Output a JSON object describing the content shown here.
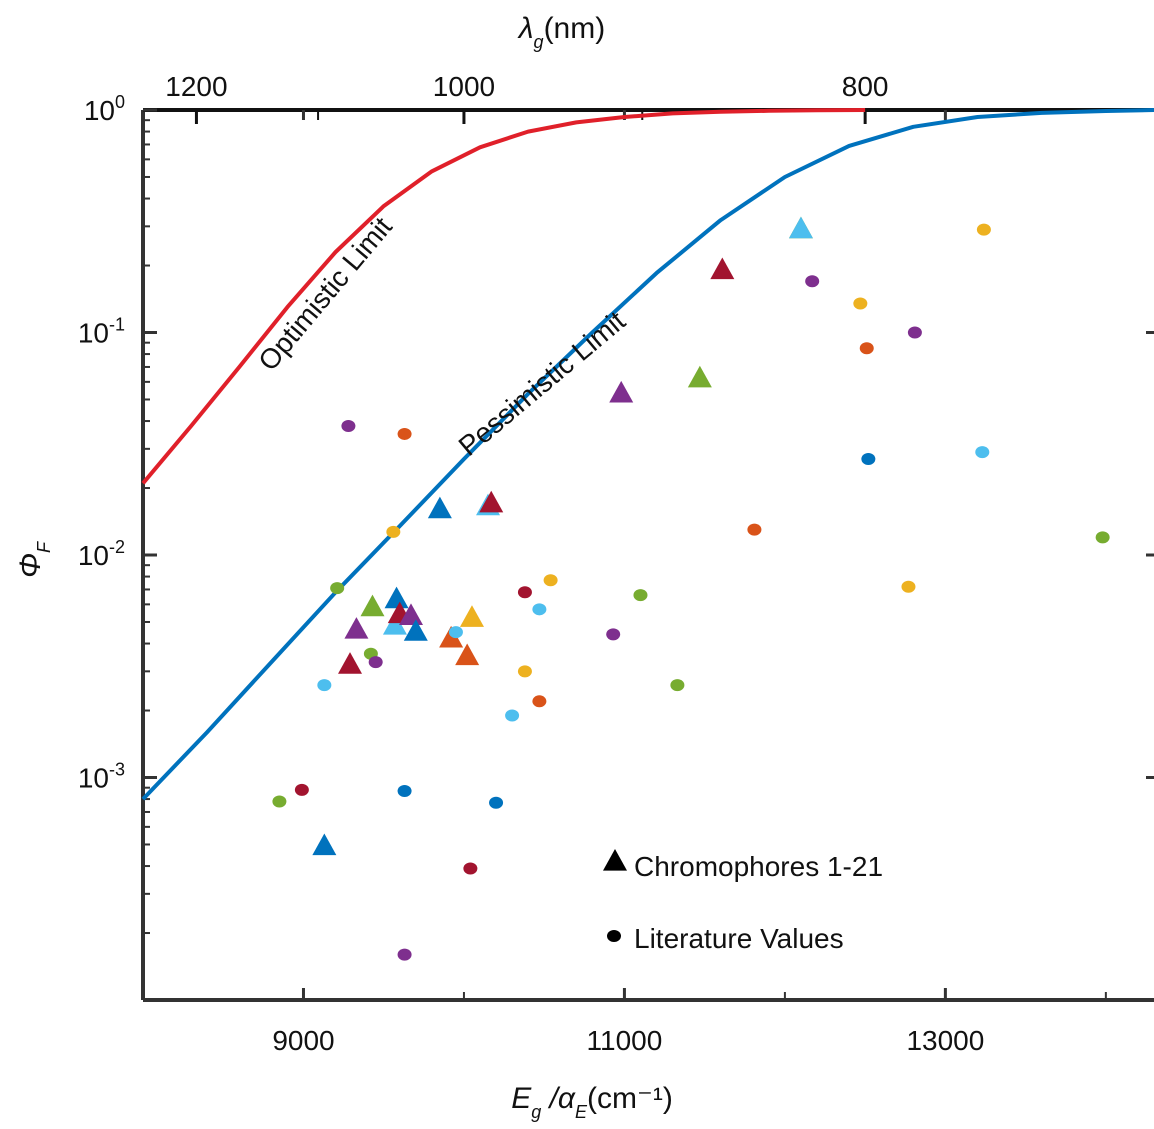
{
  "chart_data": {
    "type": "scatter",
    "title": "",
    "xlabel": {
      "main": "E",
      "sub1": "g",
      "mid": " /α",
      "sub2": "E",
      "tail": "(cm⁻¹)"
    },
    "ylabel": {
      "main": "Φ",
      "sub": "F"
    },
    "x2label": {
      "main": "λ",
      "sub": "g",
      "tail": "(nm)"
    },
    "xlim": [
      8000,
      14300
    ],
    "ylim": [
      0.0001,
      1
    ],
    "y_scale": "log",
    "x_ticks": [
      9000,
      11000,
      13000
    ],
    "x_tick_labels": [
      "9000",
      "11000",
      "13000"
    ],
    "y_ticks": [
      {
        "base": "10",
        "exp": "0",
        "value": 1
      },
      {
        "base": "10",
        "exp": "-1",
        "value": 0.1
      },
      {
        "base": "10",
        "exp": "-2",
        "value": 0.01
      },
      {
        "base": "10",
        "exp": "-3",
        "value": 0.001
      }
    ],
    "x2_ticks": [
      {
        "label": "1200",
        "value": 8333
      },
      {
        "label": "1000",
        "value": 10000
      },
      {
        "label": "800",
        "value": 12500
      }
    ],
    "curves": [
      {
        "name": "Optimistic Limit",
        "color": "#e0202a",
        "x": [
          8000,
          8300,
          8600,
          8900,
          9200,
          9500,
          9800,
          10100,
          10400,
          10700,
          11000,
          11300,
          11600,
          11900,
          12200,
          12500
        ],
        "y": [
          0.021,
          0.038,
          0.07,
          0.13,
          0.23,
          0.37,
          0.53,
          0.68,
          0.8,
          0.88,
          0.93,
          0.965,
          0.982,
          0.992,
          0.997,
          1.0
        ]
      },
      {
        "name": "Pessimistic Limit",
        "color": "#0072bd",
        "x": [
          8000,
          8400,
          8800,
          9200,
          9600,
          10000,
          10400,
          10800,
          11200,
          11600,
          12000,
          12400,
          12800,
          13200,
          13600,
          14000,
          14300
        ],
        "y": [
          0.0008,
          0.0016,
          0.0033,
          0.0068,
          0.0135,
          0.027,
          0.053,
          0.1,
          0.185,
          0.32,
          0.5,
          0.69,
          0.84,
          0.93,
          0.97,
          0.99,
          1.0
        ]
      }
    ],
    "series": [
      {
        "name": "Chromophores 1-21",
        "marker": "triangle",
        "points": [
          {
            "x": 9130,
            "y": 0.00049,
            "color": "#0072bd"
          },
          {
            "x": 9290,
            "y": 0.0032,
            "color": "#a2142f"
          },
          {
            "x": 9330,
            "y": 0.0046,
            "color": "#7e2f8e"
          },
          {
            "x": 9430,
            "y": 0.0058,
            "color": "#77ac30"
          },
          {
            "x": 9570,
            "y": 0.0048,
            "color": "#4dbeee"
          },
          {
            "x": 9580,
            "y": 0.0063,
            "color": "#0072bd"
          },
          {
            "x": 9600,
            "y": 0.0054,
            "color": "#a2142f"
          },
          {
            "x": 9670,
            "y": 0.0053,
            "color": "#7e2f8e"
          },
          {
            "x": 9700,
            "y": 0.0045,
            "color": "#0072bd"
          },
          {
            "x": 9850,
            "y": 0.016,
            "color": "#0072bd"
          },
          {
            "x": 9920,
            "y": 0.0042,
            "color": "#d95319"
          },
          {
            "x": 10020,
            "y": 0.0035,
            "color": "#d95319"
          },
          {
            "x": 10050,
            "y": 0.0052,
            "color": "#edb120"
          },
          {
            "x": 10150,
            "y": 0.0165,
            "color": "#4dbeee"
          },
          {
            "x": 10170,
            "y": 0.017,
            "color": "#a2142f"
          },
          {
            "x": 10980,
            "y": 0.053,
            "color": "#7e2f8e"
          },
          {
            "x": 11470,
            "y": 0.062,
            "color": "#77ac30"
          },
          {
            "x": 11610,
            "y": 0.19,
            "color": "#a2142f"
          },
          {
            "x": 12100,
            "y": 0.29,
            "color": "#77ac30"
          },
          {
            "x": 12100,
            "y": 0.29,
            "color": "#4dbeee"
          }
        ]
      },
      {
        "name": "Literature Values",
        "marker": "dot",
        "points": [
          {
            "x": 8850,
            "y": 0.00078,
            "color": "#77ac30"
          },
          {
            "x": 8990,
            "y": 0.00088,
            "color": "#a2142f"
          },
          {
            "x": 9130,
            "y": 0.0026,
            "color": "#4dbeee"
          },
          {
            "x": 9210,
            "y": 0.0071,
            "color": "#77ac30"
          },
          {
            "x": 9280,
            "y": 0.038,
            "color": "#7e2f8e"
          },
          {
            "x": 9420,
            "y": 0.0036,
            "color": "#77ac30"
          },
          {
            "x": 9450,
            "y": 0.0033,
            "color": "#7e2f8e"
          },
          {
            "x": 9560,
            "y": 0.0127,
            "color": "#edb120"
          },
          {
            "x": 9630,
            "y": 0.035,
            "color": "#d95319"
          },
          {
            "x": 9630,
            "y": 0.00087,
            "color": "#0072bd"
          },
          {
            "x": 9630,
            "y": 0.00016,
            "color": "#7e2f8e"
          },
          {
            "x": 9950,
            "y": 0.0045,
            "color": "#4dbeee"
          },
          {
            "x": 10040,
            "y": 0.00039,
            "color": "#a2142f"
          },
          {
            "x": 10200,
            "y": 0.00077,
            "color": "#0072bd"
          },
          {
            "x": 10300,
            "y": 0.0019,
            "color": "#4dbeee"
          },
          {
            "x": 10380,
            "y": 0.0068,
            "color": "#a2142f"
          },
          {
            "x": 10380,
            "y": 0.003,
            "color": "#edb120"
          },
          {
            "x": 10470,
            "y": 0.0057,
            "color": "#4dbeee"
          },
          {
            "x": 10470,
            "y": 0.0022,
            "color": "#d95319"
          },
          {
            "x": 10540,
            "y": 0.0077,
            "color": "#edb120"
          },
          {
            "x": 10930,
            "y": 0.0044,
            "color": "#7e2f8e"
          },
          {
            "x": 11100,
            "y": 0.0066,
            "color": "#77ac30"
          },
          {
            "x": 11330,
            "y": 0.0026,
            "color": "#77ac30"
          },
          {
            "x": 11810,
            "y": 0.013,
            "color": "#d95319"
          },
          {
            "x": 12170,
            "y": 0.17,
            "color": "#7e2f8e"
          },
          {
            "x": 12470,
            "y": 0.135,
            "color": "#edb120"
          },
          {
            "x": 12510,
            "y": 0.085,
            "color": "#d95319"
          },
          {
            "x": 12520,
            "y": 0.027,
            "color": "#0072bd"
          },
          {
            "x": 12770,
            "y": 0.0072,
            "color": "#edb120"
          },
          {
            "x": 12810,
            "y": 0.1,
            "color": "#7e2f8e"
          },
          {
            "x": 13240,
            "y": 0.29,
            "color": "#edb120"
          },
          {
            "x": 13230,
            "y": 0.029,
            "color": "#4dbeee"
          },
          {
            "x": 13980,
            "y": 0.012,
            "color": "#77ac30"
          }
        ]
      }
    ],
    "legend": {
      "placement": "bottom-center",
      "entries": [
        {
          "marker": "triangle",
          "label": "Chromophores 1-21",
          "color": "#000000"
        },
        {
          "marker": "dot",
          "label": "Literature Values",
          "color": "#000000"
        }
      ]
    },
    "grid": false
  }
}
